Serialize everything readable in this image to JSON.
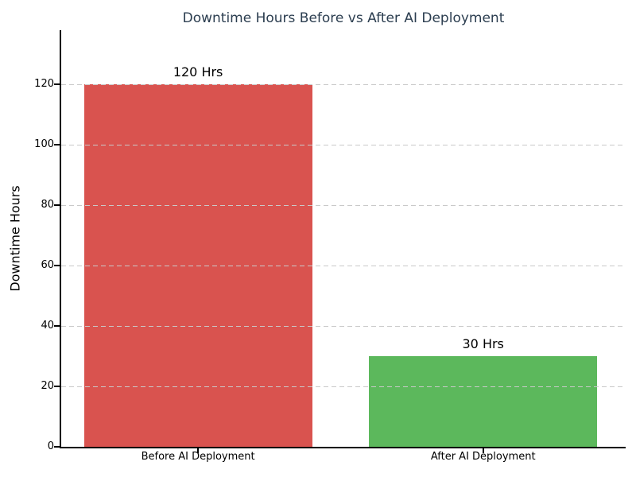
{
  "chart_data": {
    "type": "bar",
    "title": "Downtime Hours Before vs After AI Deployment",
    "xlabel": "",
    "ylabel": "Downtime Hours",
    "categories": [
      "Before AI Deployment",
      "After AI Deployment"
    ],
    "values": [
      120,
      30
    ],
    "bar_labels": [
      "120 Hrs",
      "30 Hrs"
    ],
    "bar_colors": [
      "#d9534f",
      "#5cb85c"
    ],
    "yticks": [
      0,
      20,
      40,
      60,
      80,
      100,
      120
    ],
    "ylim": [
      0,
      138
    ],
    "xlim": [
      -0.48,
      1.5
    ],
    "bar_width_units": 0.8,
    "grid": "horizontal dashed, drawn above bars",
    "grid_color": "#c9c9c9",
    "legend": "none",
    "background": "#ffffff",
    "title_color": "#2c3e50",
    "axis_color": "#000000"
  }
}
